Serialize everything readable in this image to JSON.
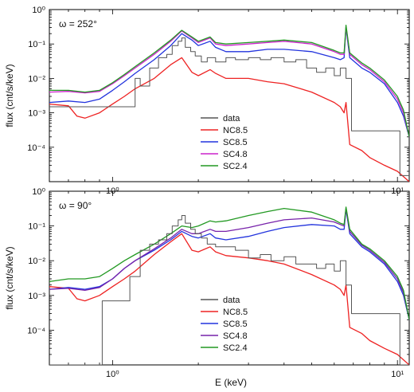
{
  "figure": {
    "xlabel": "E (keV)"
  },
  "chart_data": [
    {
      "type": "line",
      "annotation": "ω = 252°",
      "xlabel": "",
      "ylabel": "flux (cnt/s/keV)",
      "xscale": "log",
      "yscale": "log",
      "xlim": [
        0.6,
        11
      ],
      "ylim": [
        1e-05,
        1
      ],
      "x_ticks": [
        {
          "v": 1,
          "label": "10⁰"
        },
        {
          "v": 10,
          "label": "10¹"
        }
      ],
      "y_ticks": [
        {
          "v": 1,
          "label": "10⁰"
        },
        {
          "v": 0.1,
          "label": "10⁻¹"
        },
        {
          "v": 0.01,
          "label": "10⁻²"
        },
        {
          "v": 0.001,
          "label": "10⁻³"
        },
        {
          "v": 0.0001,
          "label": "10⁻⁴"
        }
      ],
      "legend_position": "lower-center",
      "series": [
        {
          "name": "data",
          "color": "#555555",
          "style": "step",
          "x": [
            0.6,
            1.2,
            1.25,
            1.35,
            1.45,
            1.55,
            1.62,
            1.7,
            1.75,
            1.8,
            1.88,
            1.95,
            2.05,
            2.15,
            2.3,
            2.5,
            2.7,
            3.0,
            3.3,
            3.6,
            4.0,
            4.4,
            4.8,
            5.2,
            5.6,
            6.0,
            6.3,
            6.6,
            6.9,
            7.4,
            8.5,
            9.5,
            10.2,
            11
          ],
          "y": [
            0.0015,
            0.01,
            0.006,
            0.02,
            0.04,
            0.05,
            0.09,
            0.12,
            0.15,
            0.08,
            0.06,
            0.045,
            0.03,
            0.04,
            0.03,
            0.04,
            0.035,
            0.04,
            0.035,
            0.04,
            0.03,
            0.035,
            0.02,
            0.015,
            0.02,
            0.012,
            0.02,
            0.01,
            0.0003,
            0.0003,
            0.0003,
            0.0003,
            1.5e-05,
            1.5e-05
          ]
        },
        {
          "name": "NC8.5",
          "color": "#ee2222",
          "x": [
            0.6,
            0.7,
            0.75,
            0.8,
            0.9,
            1.0,
            1.1,
            1.2,
            1.4,
            1.6,
            1.75,
            1.9,
            2.0,
            2.2,
            2.3,
            2.5,
            3.0,
            3.5,
            4.0,
            5.0,
            6.0,
            6.3,
            6.5,
            6.6,
            6.8,
            7.5,
            8.0,
            9.0,
            10.0,
            11.0
          ],
          "y": [
            0.0018,
            0.0016,
            0.0008,
            0.0007,
            0.001,
            0.0018,
            0.003,
            0.005,
            0.01,
            0.025,
            0.04,
            0.015,
            0.012,
            0.018,
            0.014,
            0.01,
            0.01,
            0.008,
            0.007,
            0.004,
            0.002,
            0.0015,
            0.001,
            0.002,
            0.00012,
            8e-05,
            5e-05,
            3e-05,
            2e-05,
            1e-05
          ]
        },
        {
          "name": "SC8.5",
          "color": "#2233dd",
          "x": [
            0.6,
            0.7,
            0.8,
            0.9,
            1.0,
            1.1,
            1.2,
            1.4,
            1.6,
            1.75,
            1.9,
            2.0,
            2.2,
            2.3,
            2.5,
            3.0,
            3.5,
            4.0,
            5.0,
            6.0,
            6.3,
            6.5,
            6.6,
            6.8,
            7.5,
            8.0,
            9.0,
            10.0,
            10.5,
            11.0
          ],
          "y": [
            0.002,
            0.0022,
            0.002,
            0.0025,
            0.0045,
            0.008,
            0.014,
            0.035,
            0.09,
            0.2,
            0.13,
            0.09,
            0.12,
            0.08,
            0.06,
            0.06,
            0.07,
            0.07,
            0.06,
            0.04,
            0.035,
            0.04,
            0.3,
            0.04,
            0.02,
            0.015,
            0.007,
            0.002,
            0.0008,
            0.0002
          ]
        },
        {
          "name": "SC4.8",
          "color": "#cc22cc",
          "x": [
            0.6,
            0.7,
            0.8,
            0.9,
            1.0,
            1.1,
            1.2,
            1.4,
            1.6,
            1.75,
            1.9,
            2.0,
            2.2,
            2.3,
            2.5,
            3.0,
            3.5,
            4.0,
            5.0,
            6.0,
            6.3,
            6.5,
            6.6,
            6.8,
            7.5,
            8.0,
            9.0,
            10.0,
            10.5,
            11.0
          ],
          "y": [
            0.004,
            0.0042,
            0.0038,
            0.0042,
            0.007,
            0.012,
            0.02,
            0.05,
            0.12,
            0.24,
            0.15,
            0.11,
            0.15,
            0.1,
            0.09,
            0.1,
            0.11,
            0.12,
            0.1,
            0.06,
            0.05,
            0.05,
            0.32,
            0.05,
            0.025,
            0.018,
            0.008,
            0.0025,
            0.001,
            0.0002
          ]
        },
        {
          "name": "SC2.4",
          "color": "#229922",
          "x": [
            0.6,
            0.7,
            0.8,
            0.9,
            1.0,
            1.1,
            1.2,
            1.4,
            1.6,
            1.75,
            1.9,
            2.0,
            2.2,
            2.3,
            2.5,
            3.0,
            3.5,
            4.0,
            5.0,
            6.0,
            6.3,
            6.5,
            6.6,
            6.8,
            7.5,
            8.0,
            9.0,
            10.0,
            10.5,
            11.0
          ],
          "y": [
            0.0045,
            0.0045,
            0.004,
            0.0045,
            0.0075,
            0.013,
            0.022,
            0.055,
            0.13,
            0.25,
            0.16,
            0.12,
            0.16,
            0.11,
            0.1,
            0.11,
            0.12,
            0.13,
            0.11,
            0.065,
            0.055,
            0.055,
            0.35,
            0.055,
            0.028,
            0.02,
            0.009,
            0.003,
            0.0012,
            0.0002
          ]
        }
      ]
    },
    {
      "type": "line",
      "annotation": "ω = 90°",
      "xlabel": "E (keV)",
      "ylabel": "flux (cnt/s/keV)",
      "xscale": "log",
      "yscale": "log",
      "xlim": [
        0.6,
        11
      ],
      "ylim": [
        1e-05,
        1
      ],
      "x_ticks": [
        {
          "v": 1,
          "label": "10⁰"
        },
        {
          "v": 10,
          "label": "10¹"
        }
      ],
      "y_ticks": [
        {
          "v": 1,
          "label": "10⁰"
        },
        {
          "v": 0.1,
          "label": "10⁻¹"
        },
        {
          "v": 0.01,
          "label": "10⁻²"
        },
        {
          "v": 0.001,
          "label": "10⁻³"
        },
        {
          "v": 0.0001,
          "label": "10⁻⁴"
        }
      ],
      "legend_position": "lower-center",
      "series": [
        {
          "name": "data",
          "color": "#555555",
          "style": "step",
          "x": [
            0.6,
            0.92,
            1.15,
            1.25,
            1.35,
            1.45,
            1.55,
            1.62,
            1.7,
            1.75,
            1.8,
            1.88,
            1.95,
            2.05,
            2.15,
            2.3,
            2.5,
            2.7,
            3.0,
            3.3,
            3.6,
            4.0,
            4.4,
            4.8,
            5.2,
            5.6,
            6.0,
            6.3,
            6.6,
            6.9,
            7.4,
            8.5,
            9.5,
            10.2,
            11
          ],
          "y": [
            1e-05,
            0.0007,
            0.0035,
            0.02,
            0.03,
            0.04,
            0.06,
            0.1,
            0.15,
            0.2,
            0.12,
            0.08,
            0.06,
            0.045,
            0.03,
            0.025,
            0.025,
            0.02,
            0.012,
            0.015,
            0.01,
            0.013,
            0.008,
            0.008,
            0.006,
            0.008,
            0.005,
            0.01,
            0.002,
            0.0003,
            0.0003,
            0.0003,
            0.0003,
            1e-05,
            1e-05
          ]
        },
        {
          "name": "NC8.5",
          "color": "#ee2222",
          "x": [
            0.6,
            0.7,
            0.75,
            0.8,
            0.9,
            1.0,
            1.1,
            1.2,
            1.4,
            1.6,
            1.75,
            1.9,
            2.0,
            2.2,
            2.3,
            2.5,
            3.0,
            3.5,
            4.0,
            5.0,
            6.0,
            6.3,
            6.5,
            6.6,
            6.8,
            7.5,
            8.0,
            9.0,
            10.0,
            11.0
          ],
          "y": [
            0.0018,
            0.0016,
            0.0008,
            0.0007,
            0.001,
            0.0018,
            0.003,
            0.005,
            0.015,
            0.035,
            0.06,
            0.02,
            0.018,
            0.025,
            0.018,
            0.014,
            0.012,
            0.01,
            0.008,
            0.004,
            0.002,
            0.0015,
            0.001,
            0.002,
            0.00012,
            8e-05,
            5e-05,
            3e-05,
            2e-05,
            1e-05
          ]
        },
        {
          "name": "SC8.5",
          "color": "#2233dd",
          "x": [
            0.6,
            0.7,
            0.8,
            0.9,
            1.0,
            1.1,
            1.2,
            1.4,
            1.6,
            1.75,
            1.9,
            2.0,
            2.2,
            2.3,
            2.5,
            3.0,
            3.5,
            4.0,
            5.0,
            6.0,
            6.3,
            6.5,
            6.6,
            6.8,
            7.5,
            8.0,
            9.0,
            10.0,
            10.5,
            11.0
          ],
          "y": [
            0.0015,
            0.0017,
            0.0015,
            0.0018,
            0.003,
            0.006,
            0.01,
            0.02,
            0.04,
            0.07,
            0.05,
            0.045,
            0.06,
            0.045,
            0.04,
            0.05,
            0.07,
            0.09,
            0.11,
            0.1,
            0.08,
            0.08,
            0.3,
            0.06,
            0.025,
            0.018,
            0.008,
            0.0025,
            0.001,
            0.0002
          ]
        },
        {
          "name": "SC4.8",
          "color": "#7722aa",
          "x": [
            0.6,
            0.7,
            0.8,
            0.9,
            1.0,
            1.1,
            1.2,
            1.4,
            1.6,
            1.75,
            1.9,
            2.0,
            2.2,
            2.3,
            2.5,
            3.0,
            3.5,
            4.0,
            5.0,
            6.0,
            6.3,
            6.5,
            6.6,
            6.8,
            7.5,
            8.0,
            9.0,
            10.0,
            10.5,
            11.0
          ],
          "y": [
            0.0015,
            0.0016,
            0.0014,
            0.0017,
            0.003,
            0.006,
            0.01,
            0.022,
            0.045,
            0.08,
            0.06,
            0.06,
            0.08,
            0.07,
            0.07,
            0.09,
            0.12,
            0.15,
            0.17,
            0.13,
            0.11,
            0.1,
            0.32,
            0.07,
            0.028,
            0.02,
            0.009,
            0.003,
            0.0012,
            0.0002
          ]
        },
        {
          "name": "SC2.4",
          "color": "#229922",
          "x": [
            0.6,
            0.7,
            0.8,
            0.9,
            1.0,
            1.1,
            1.2,
            1.4,
            1.6,
            1.75,
            1.9,
            2.0,
            2.2,
            2.3,
            2.5,
            3.0,
            3.5,
            4.0,
            5.0,
            6.0,
            6.3,
            6.5,
            6.6,
            6.8,
            7.5,
            8.0,
            9.0,
            10.0,
            10.5,
            11.0
          ],
          "y": [
            0.0025,
            0.003,
            0.003,
            0.0035,
            0.006,
            0.01,
            0.015,
            0.03,
            0.06,
            0.1,
            0.09,
            0.1,
            0.14,
            0.13,
            0.14,
            0.2,
            0.26,
            0.32,
            0.25,
            0.15,
            0.12,
            0.11,
            0.35,
            0.08,
            0.03,
            0.022,
            0.01,
            0.0035,
            0.0014,
            0.0002
          ]
        }
      ]
    }
  ]
}
